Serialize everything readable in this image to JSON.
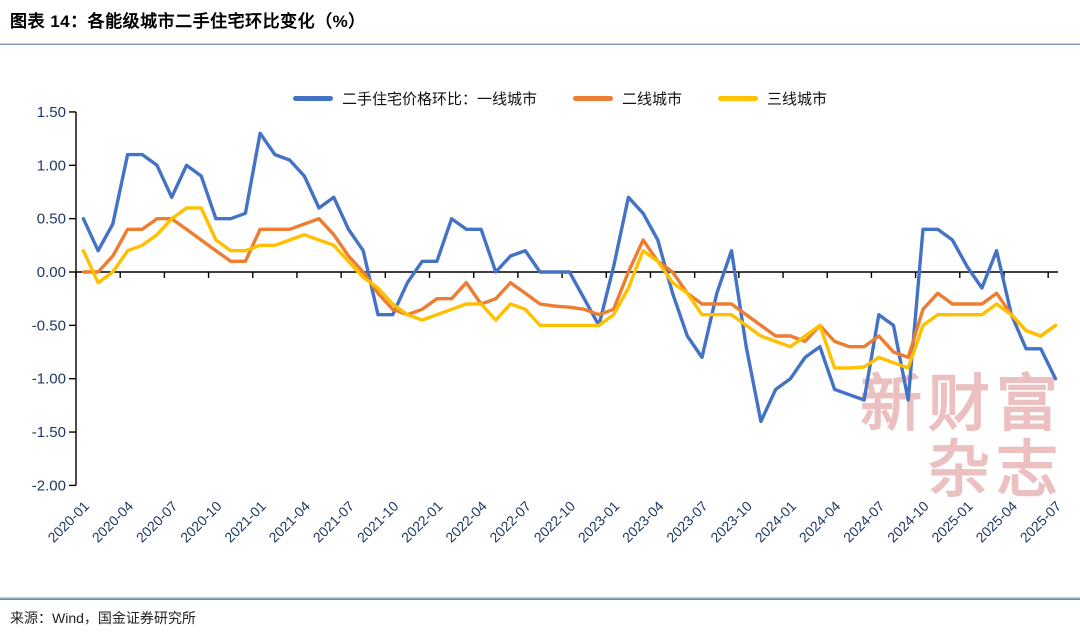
{
  "header": {
    "title": "图表 14：各能级城市二手住宅环比变化（%）"
  },
  "footer": {
    "source": "来源：Wind，国金证券研究所"
  },
  "watermark": {
    "line1": "新财富",
    "line2": "杂志"
  },
  "chart_data": {
    "type": "line",
    "title": "图表 14：各能级城市二手住宅环比变化（%）",
    "xlabel": "",
    "ylabel": "",
    "ylim": [
      -2.0,
      1.5
    ],
    "ytick_step": 0.5,
    "grid": false,
    "legend_position": "top",
    "x_tick_every": 3,
    "axis_color": "#000000",
    "tick_label_color": "#1F3864",
    "x": [
      "2020-01",
      "2020-02",
      "2020-03",
      "2020-04",
      "2020-05",
      "2020-06",
      "2020-07",
      "2020-08",
      "2020-09",
      "2020-10",
      "2020-11",
      "2020-12",
      "2021-01",
      "2021-02",
      "2021-03",
      "2021-04",
      "2021-05",
      "2021-06",
      "2021-07",
      "2021-08",
      "2021-09",
      "2021-10",
      "2021-11",
      "2021-12",
      "2022-01",
      "2022-02",
      "2022-03",
      "2022-04",
      "2022-05",
      "2022-06",
      "2022-07",
      "2022-08",
      "2022-09",
      "2022-10",
      "2022-11",
      "2022-12",
      "2023-01",
      "2023-02",
      "2023-03",
      "2023-04",
      "2023-05",
      "2023-06",
      "2023-07",
      "2023-08",
      "2023-09",
      "2023-10",
      "2023-11",
      "2023-12",
      "2024-01",
      "2024-02",
      "2024-03",
      "2024-04",
      "2024-05",
      "2024-06",
      "2024-07",
      "2024-08",
      "2024-09",
      "2024-10",
      "2024-11",
      "2024-12",
      "2025-01",
      "2025-02",
      "2025-03",
      "2025-04",
      "2025-05",
      "2025-06",
      "2025-07"
    ],
    "series": [
      {
        "name": "二手住宅价格环比：一线城市",
        "color": "#4472C4",
        "values": [
          0.5,
          0.2,
          0.45,
          1.1,
          1.1,
          1.0,
          0.7,
          1.0,
          0.9,
          0.5,
          0.5,
          0.55,
          1.3,
          1.1,
          1.05,
          0.9,
          0.6,
          0.7,
          0.4,
          0.2,
          -0.4,
          -0.4,
          -0.1,
          0.1,
          0.1,
          0.5,
          0.4,
          0.4,
          0.0,
          0.15,
          0.2,
          0.0,
          0.0,
          0.0,
          -0.25,
          -0.5,
          0.05,
          0.7,
          0.55,
          0.3,
          -0.2,
          -0.6,
          -0.8,
          -0.2,
          0.2,
          -0.7,
          -1.4,
          -1.1,
          -1.0,
          -0.8,
          -0.7,
          -1.1,
          -1.15,
          -1.2,
          -0.4,
          -0.5,
          -1.2,
          0.4,
          0.4,
          0.3,
          0.05,
          -0.15,
          0.2,
          -0.4,
          -0.72,
          -0.72,
          -1.0
        ]
      },
      {
        "name": "二线城市",
        "color": "#ED7D31",
        "values": [
          0.0,
          0.0,
          0.15,
          0.4,
          0.4,
          0.5,
          0.5,
          0.4,
          0.3,
          0.2,
          0.1,
          0.1,
          0.4,
          0.4,
          0.4,
          0.45,
          0.5,
          0.35,
          0.15,
          0.0,
          -0.2,
          -0.35,
          -0.4,
          -0.35,
          -0.25,
          -0.25,
          -0.1,
          -0.3,
          -0.25,
          -0.1,
          -0.2,
          -0.3,
          -0.32,
          -0.33,
          -0.35,
          -0.4,
          -0.35,
          0.0,
          0.3,
          0.1,
          0.0,
          -0.2,
          -0.3,
          -0.3,
          -0.3,
          -0.4,
          -0.5,
          -0.6,
          -0.6,
          -0.65,
          -0.5,
          -0.65,
          -0.7,
          -0.7,
          -0.6,
          -0.75,
          -0.8,
          -0.35,
          -0.2,
          -0.3,
          -0.3,
          -0.3,
          -0.2,
          -0.4,
          -0.55,
          -0.6,
          -0.5
        ]
      },
      {
        "name": "三线城市",
        "color": "#FFC000",
        "values": [
          0.2,
          -0.1,
          0.0,
          0.2,
          0.25,
          0.35,
          0.5,
          0.6,
          0.6,
          0.3,
          0.2,
          0.2,
          0.25,
          0.25,
          0.3,
          0.35,
          0.3,
          0.25,
          0.1,
          -0.05,
          -0.15,
          -0.3,
          -0.4,
          -0.45,
          -0.4,
          -0.35,
          -0.3,
          -0.3,
          -0.45,
          -0.3,
          -0.35,
          -0.5,
          -0.5,
          -0.5,
          -0.5,
          -0.5,
          -0.4,
          -0.15,
          0.2,
          0.1,
          -0.1,
          -0.2,
          -0.4,
          -0.4,
          -0.4,
          -0.5,
          -0.6,
          -0.65,
          -0.7,
          -0.6,
          -0.5,
          -0.9,
          -0.9,
          -0.89,
          -0.8,
          -0.85,
          -0.9,
          -0.5,
          -0.4,
          -0.4,
          -0.4,
          -0.4,
          -0.3,
          -0.4,
          -0.55,
          -0.6,
          -0.5
        ]
      }
    ]
  }
}
